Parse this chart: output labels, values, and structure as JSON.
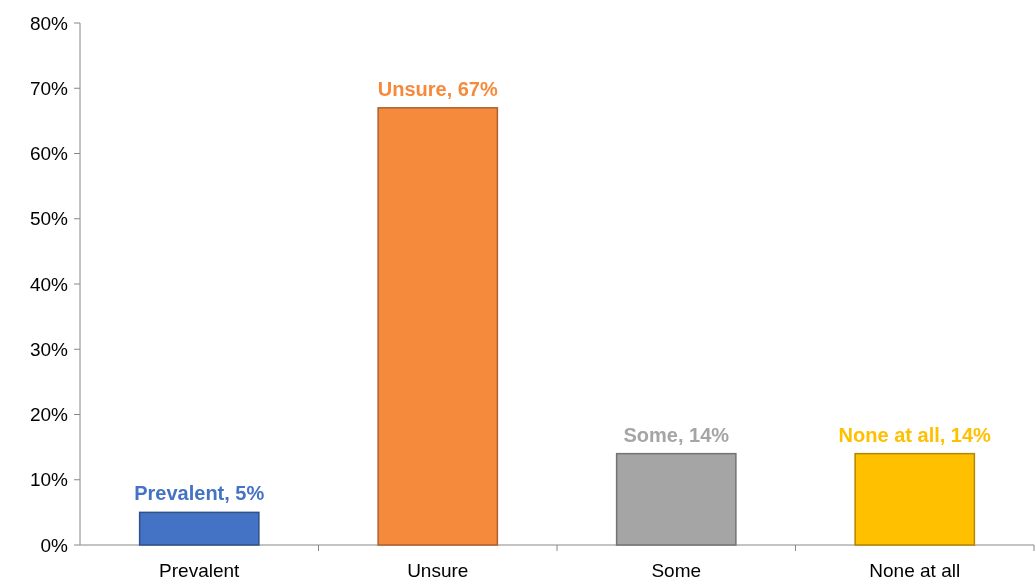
{
  "chart_data": {
    "type": "bar",
    "categories": [
      "Prevalent",
      "Unsure",
      "Some",
      "None at all"
    ],
    "values": [
      5,
      67,
      14,
      14
    ],
    "colors": [
      "#4472c4",
      "#f58a3c",
      "#a5a5a5",
      "#ffc000"
    ],
    "value_labels": [
      "Prevalent, 5%",
      "Unsure, 67%",
      "Some, 14%",
      "None at all, 14%"
    ],
    "ylim": [
      0,
      80
    ],
    "yticks": [
      {
        "value": 0,
        "label": "0%"
      },
      {
        "value": 10,
        "label": "10%"
      },
      {
        "value": 20,
        "label": "20%"
      },
      {
        "value": 30,
        "label": "30%"
      },
      {
        "value": 40,
        "label": "40%"
      },
      {
        "value": 50,
        "label": "50%"
      },
      {
        "value": 60,
        "label": "60%"
      },
      {
        "value": 70,
        "label": "70%"
      },
      {
        "value": 80,
        "label": "80%"
      }
    ],
    "grid": false
  }
}
